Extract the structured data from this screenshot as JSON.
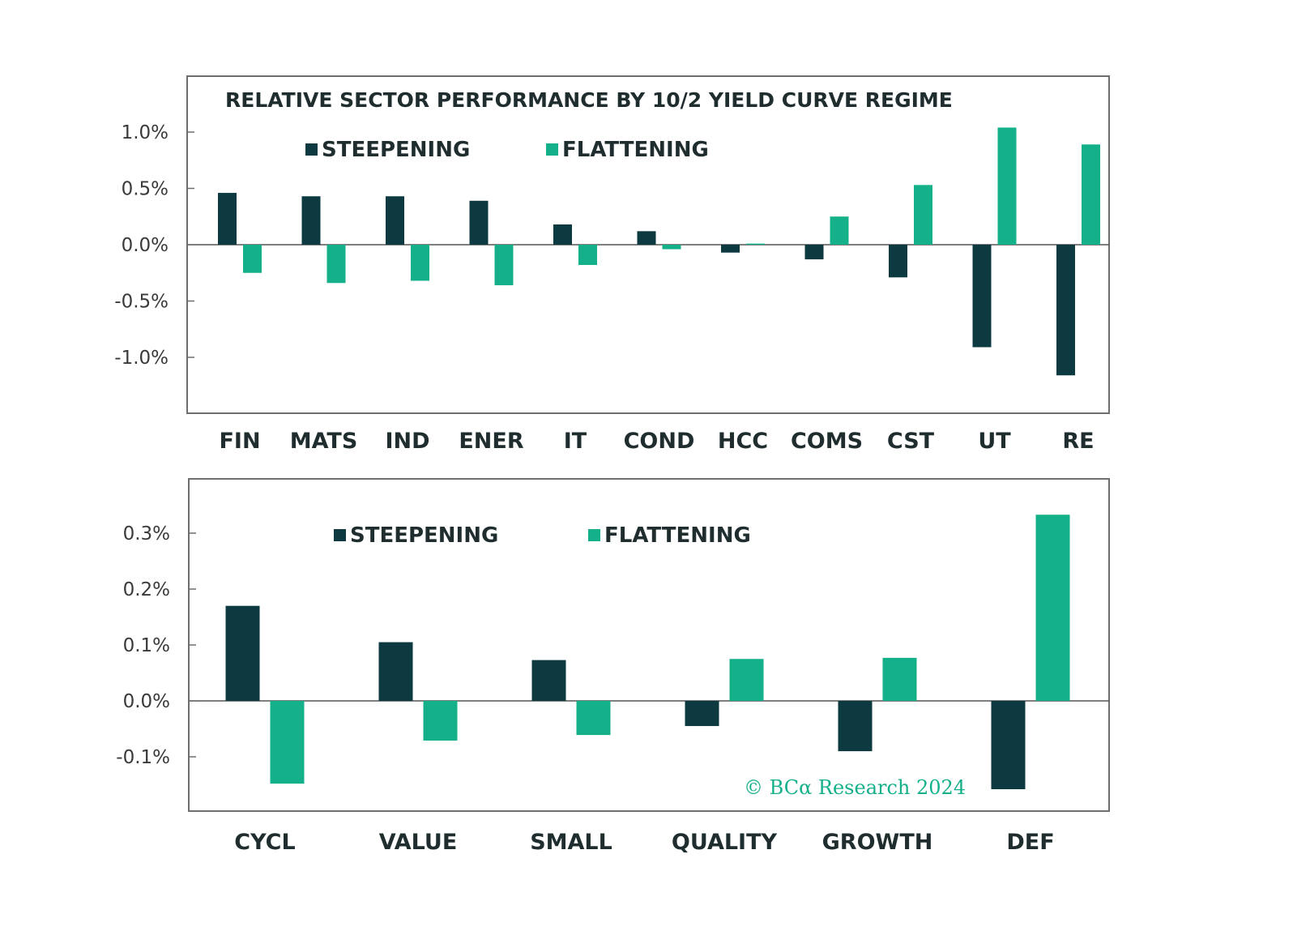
{
  "colors": {
    "steepening": "#0d3a40",
    "flattening": "#14b08a",
    "frame": "#6e6e6e",
    "zero_line": "#555555",
    "credit": "#14b08a"
  },
  "chart_data": [
    {
      "type": "bar",
      "title": "RELATIVE SECTOR PERFORMANCE BY 10/2 YIELD CURVE REGIME",
      "categories": [
        "FIN",
        "MATS",
        "IND",
        "ENER",
        "IT",
        "COND",
        "HCC",
        "COMS",
        "CST",
        "UT",
        "RE"
      ],
      "series": [
        {
          "name": "STEEPENING",
          "values": [
            0.46,
            0.43,
            0.43,
            0.39,
            0.18,
            0.12,
            -0.07,
            -0.13,
            -0.29,
            -0.91,
            -1.16
          ]
        },
        {
          "name": "FLATTENING",
          "values": [
            -0.25,
            -0.34,
            -0.32,
            -0.36,
            -0.18,
            -0.04,
            0.01,
            0.25,
            0.53,
            1.04,
            0.89
          ]
        }
      ],
      "yticks": [
        1.0,
        0.5,
        0.0,
        -0.5,
        -1.0
      ],
      "ytick_labels": [
        "1.0%",
        "0.5%",
        "0.0%",
        "-0.5%",
        "-1.0%"
      ],
      "ylim": [
        -1.5,
        1.5
      ],
      "legend": "top-left",
      "grid": false
    },
    {
      "type": "bar",
      "categories": [
        "CYCL",
        "VALUE",
        "SMALL",
        "QUALITY",
        "GROWTH",
        "DEF"
      ],
      "series": [
        {
          "name": "STEEPENING",
          "values": [
            0.17,
            0.105,
            0.073,
            -0.045,
            -0.09,
            -0.158
          ]
        },
        {
          "name": "FLATTENING",
          "values": [
            -0.148,
            -0.071,
            -0.061,
            0.075,
            0.077,
            0.333
          ]
        }
      ],
      "yticks": [
        0.3,
        0.2,
        0.1,
        0.0,
        -0.1
      ],
      "ytick_labels": [
        "0.3%",
        "0.2%",
        "0.1%",
        "0.0%",
        "-0.1%"
      ],
      "ylim": [
        -0.2,
        0.4
      ],
      "legend": "top-left",
      "grid": false,
      "annotation": "© BCα Research 2024"
    }
  ]
}
